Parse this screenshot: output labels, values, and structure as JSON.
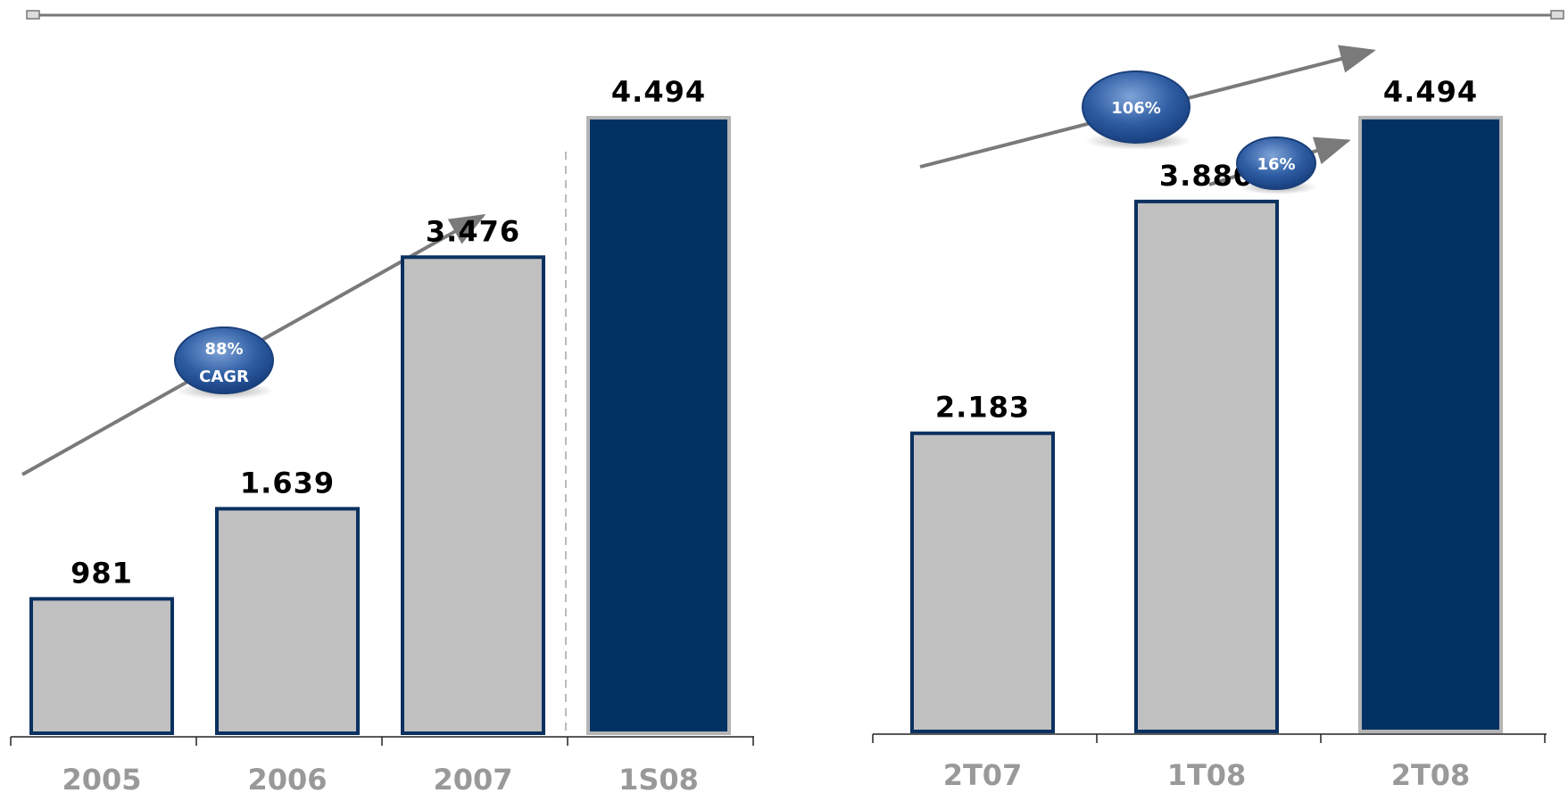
{
  "chart_data": [
    {
      "type": "bar",
      "categories": [
        "2005",
        "2006",
        "2007",
        "1S08"
      ],
      "values": [
        981,
        1639,
        3476,
        4494
      ],
      "value_labels": [
        "981",
        "1.639",
        "3.476",
        "4.494"
      ],
      "highlight_index": 3,
      "ylim": [
        0,
        4800
      ],
      "badge": {
        "line1": "88%",
        "line2": "CAGR"
      }
    },
    {
      "type": "bar",
      "categories": [
        "2T07",
        "1T08",
        "2T08"
      ],
      "values": [
        2183,
        3880,
        4494
      ],
      "value_labels": [
        "2.183",
        "3.880",
        "4.494"
      ],
      "highlight_index": 2,
      "ylim": [
        0,
        4800
      ],
      "badges": [
        {
          "line1": "106%"
        },
        {
          "line1": "16%"
        }
      ]
    }
  ],
  "colors": {
    "bar_fill": "#c0c0c0",
    "bar_border": "#0a3160",
    "highlight_fill": "#013263",
    "highlight_border": "#b5b5b5",
    "badge": "#2e5da3",
    "arrow": "#7a7a7a",
    "tick_label": "#999999"
  }
}
